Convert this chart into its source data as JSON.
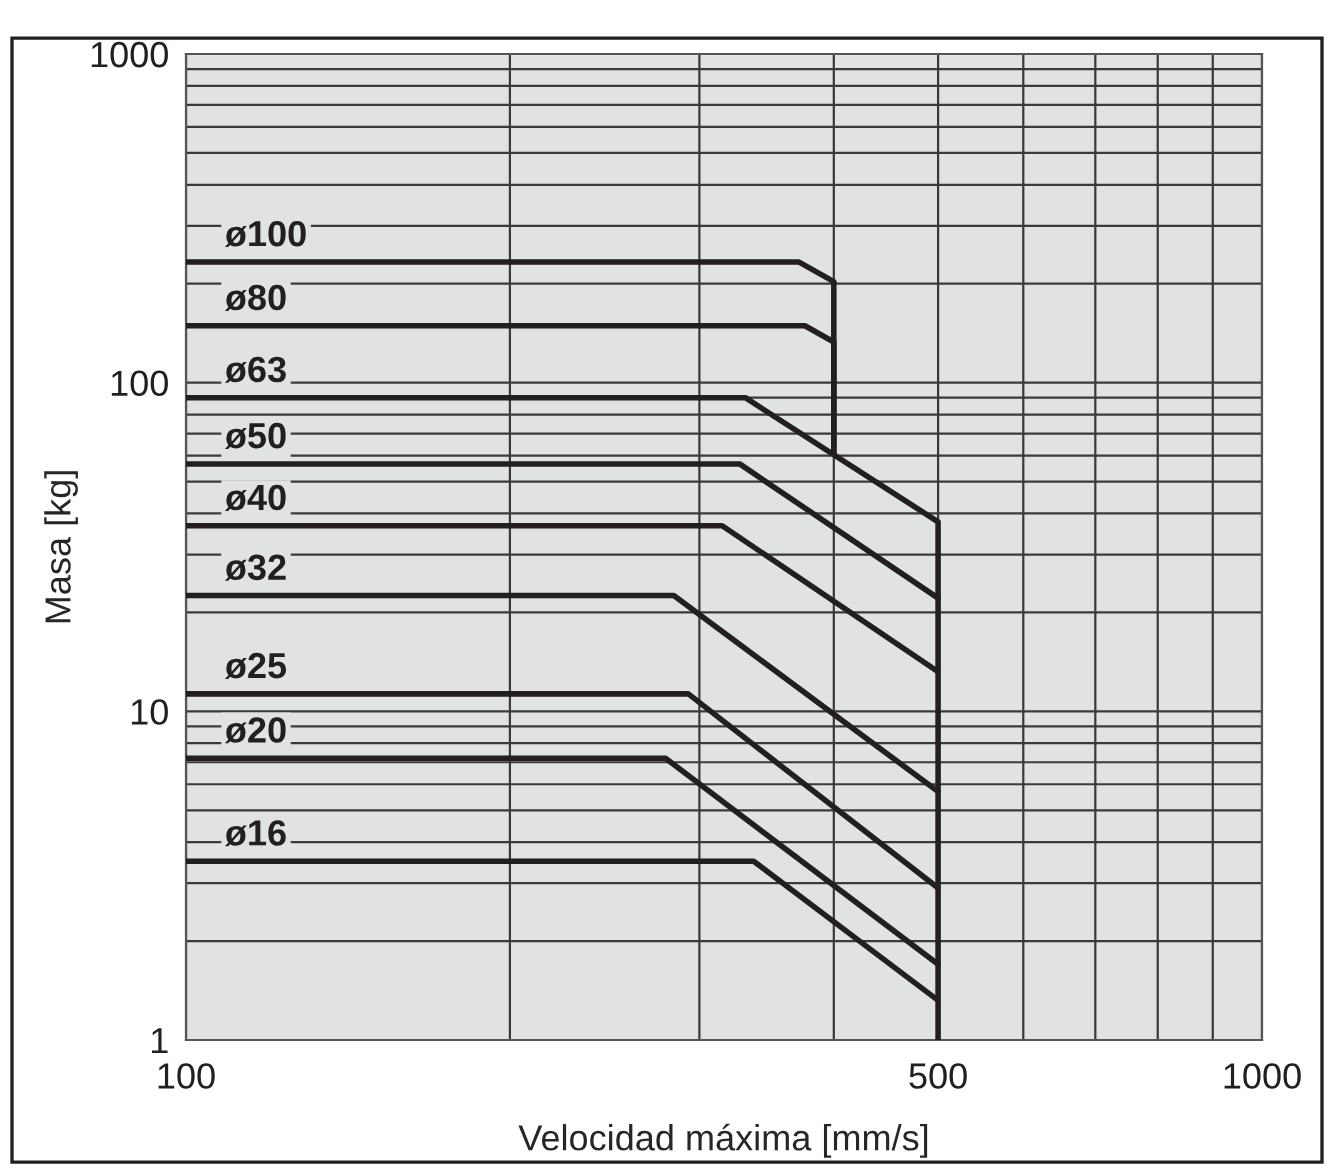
{
  "chart_data": {
    "type": "line",
    "xlabel": "Velocidad máxima [mm/s]",
    "ylabel": "Masa [kg]",
    "log": "xy",
    "grid": true,
    "legend": false,
    "marker": "none",
    "line_style": "solid",
    "xlim": [
      100,
      1000
    ],
    "ylim": [
      1,
      1000
    ],
    "xticks": [
      100,
      {
        "value": 200,
        "label": null
      },
      {
        "value": 300,
        "label": null
      },
      {
        "value": 400,
        "label": null
      },
      500,
      {
        "value": 600,
        "label": null
      },
      {
        "value": 700,
        "label": null
      },
      {
        "value": 800,
        "label": null
      },
      {
        "value": 900,
        "label": null
      },
      1000
    ],
    "yticks": [
      1,
      10,
      100,
      1000
    ],
    "series": [
      {
        "name": "ø100",
        "color": "#231f20",
        "x": [
          100,
          371,
          400,
          400
        ],
        "values": [
          233,
          233,
          203,
          61
        ]
      },
      {
        "name": "ø80",
        "color": "#231f20",
        "x": [
          100,
          376,
          400,
          400
        ],
        "values": [
          149,
          149,
          133,
          61
        ]
      },
      {
        "name": "ø63",
        "color": "#231f20",
        "x": [
          100,
          331,
          500,
          500
        ],
        "values": [
          90,
          90,
          37.7,
          1
        ]
      },
      {
        "name": "ø50",
        "color": "#231f20",
        "x": [
          100,
          327,
          500
        ],
        "values": [
          56.6,
          56.6,
          22.1
        ]
      },
      {
        "name": "ø40",
        "color": "#231f20",
        "x": [
          100,
          315,
          500
        ],
        "values": [
          36.7,
          36.7,
          13.2
        ]
      },
      {
        "name": "ø32",
        "color": "#231f20",
        "x": [
          100,
          284,
          500
        ],
        "values": [
          22.5,
          22.5,
          5.7
        ]
      },
      {
        "name": "ø25",
        "color": "#231f20",
        "x": [
          100,
          293,
          500
        ],
        "values": [
          11.3,
          11.3,
          2.9
        ]
      },
      {
        "name": "ø20",
        "color": "#231f20",
        "x": [
          100,
          279,
          500
        ],
        "values": [
          7.2,
          7.2,
          1.7
        ]
      },
      {
        "name": "ø16",
        "color": "#231f20",
        "x": [
          100,
          337,
          500
        ],
        "values": [
          3.5,
          3.5,
          1.32
        ]
      }
    ]
  }
}
